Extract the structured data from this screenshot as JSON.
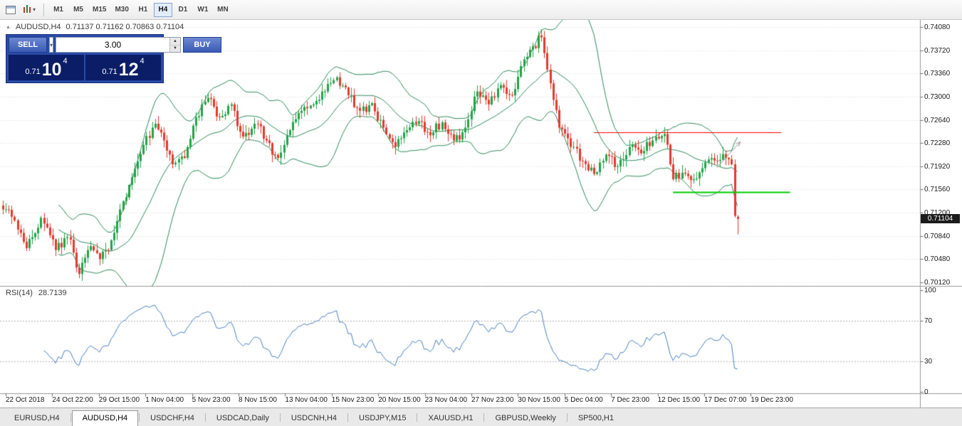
{
  "toolbar": {
    "timeframes": [
      "M1",
      "M5",
      "M15",
      "M30",
      "H1",
      "H4",
      "D1",
      "W1",
      "MN"
    ],
    "active_timeframe": "H4"
  },
  "chart_header": {
    "symbol": "AUDUSD,H4",
    "ohlc": "0.71137 0.71162 0.70863 0.71104"
  },
  "trade_panel": {
    "sell_label": "SELL",
    "buy_label": "BUY",
    "lot_size": "3.00",
    "sell_price": {
      "prefix": "0.71",
      "big": "10",
      "sup": "4"
    },
    "buy_price": {
      "prefix": "0.71",
      "big": "12",
      "sup": "4"
    }
  },
  "price_axis": {
    "labels": [
      "0.74080",
      "0.73720",
      "0.73360",
      "0.73000",
      "0.72640",
      "0.72280",
      "0.71920",
      "0.71560",
      "0.71200",
      "0.70840",
      "0.70480",
      "0.70120"
    ],
    "current": "0.71104"
  },
  "rsi_panel": {
    "label": "RSI(14)",
    "value": "28.7139",
    "axis": [
      {
        "text": "100",
        "v": 100
      },
      {
        "text": "70",
        "v": 70
      },
      {
        "text": "30",
        "v": 30
      },
      {
        "text": "0",
        "v": 0
      }
    ]
  },
  "time_axis": {
    "labels": [
      "22 Oct 2018",
      "24 Oct 22:00",
      "29 Oct 15:00",
      "1 Nov 04:00",
      "5 Nov 23:00",
      "8 Nov 15:00",
      "13 Nov 04:00",
      "15 Nov 23:00",
      "20 Nov 15:00",
      "23 Nov 04:00",
      "27 Nov 23:00",
      "30 Nov 15:00",
      "5 Dec 04:00",
      "7 Dec 23:00",
      "12 Dec 15:00",
      "17 Dec 07:00",
      "19 Dec 23:00"
    ]
  },
  "tabs": {
    "items": [
      "EURUSD,H4",
      "AUDUSD,H4",
      "USDCHF,H4",
      "USDCAD,Daily",
      "USDCNH,H4",
      "USDJPY,M15",
      "XAUUSD,H1",
      "GBPUSD,Weekly",
      "SP500,H1"
    ],
    "active_index": 1
  },
  "chart_data": {
    "type": "candlestick",
    "symbol": "AUDUSD",
    "timeframe": "H4",
    "num_candles": 252,
    "y_axis": {
      "min": 0.7012,
      "max": 0.7408
    },
    "price_path": [
      [
        0,
        0.7125
      ],
      [
        4,
        0.7108
      ],
      [
        8,
        0.7065
      ],
      [
        11,
        0.7088
      ],
      [
        13,
        0.7112
      ],
      [
        16,
        0.7085
      ],
      [
        18,
        0.7062
      ],
      [
        22,
        0.7082
      ],
      [
        24,
        0.7058
      ],
      [
        26,
        0.7025
      ],
      [
        28,
        0.705
      ],
      [
        30,
        0.7068
      ],
      [
        33,
        0.7048
      ],
      [
        36,
        0.7062
      ],
      [
        40,
        0.7125
      ],
      [
        44,
        0.7175
      ],
      [
        48,
        0.7225
      ],
      [
        52,
        0.7258
      ],
      [
        55,
        0.7232
      ],
      [
        58,
        0.7195
      ],
      [
        62,
        0.7205
      ],
      [
        66,
        0.7268
      ],
      [
        70,
        0.7298
      ],
      [
        74,
        0.7268
      ],
      [
        78,
        0.7288
      ],
      [
        82,
        0.7238
      ],
      [
        86,
        0.7258
      ],
      [
        90,
        0.7232
      ],
      [
        94,
        0.7205
      ],
      [
        98,
        0.7248
      ],
      [
        102,
        0.7278
      ],
      [
        106,
        0.7288
      ],
      [
        110,
        0.7308
      ],
      [
        114,
        0.733
      ],
      [
        118,
        0.7302
      ],
      [
        122,
        0.7278
      ],
      [
        126,
        0.729
      ],
      [
        130,
        0.7252
      ],
      [
        134,
        0.7222
      ],
      [
        138,
        0.7248
      ],
      [
        142,
        0.7262
      ],
      [
        146,
        0.724
      ],
      [
        150,
        0.726
      ],
      [
        154,
        0.7232
      ],
      [
        158,
        0.7252
      ],
      [
        162,
        0.7308
      ],
      [
        166,
        0.7288
      ],
      [
        170,
        0.7318
      ],
      [
        174,
        0.7302
      ],
      [
        178,
        0.7358
      ],
      [
        181,
        0.7378
      ],
      [
        184,
        0.7392
      ],
      [
        186,
        0.7342
      ],
      [
        190,
        0.7252
      ],
      [
        194,
        0.7222
      ],
      [
        198,
        0.72
      ],
      [
        202,
        0.718
      ],
      [
        206,
        0.721
      ],
      [
        210,
        0.7192
      ],
      [
        214,
        0.7222
      ],
      [
        218,
        0.7212
      ],
      [
        222,
        0.7232
      ],
      [
        226,
        0.7242
      ],
      [
        229,
        0.7172
      ],
      [
        232,
        0.7182
      ],
      [
        236,
        0.7172
      ],
      [
        240,
        0.7198
      ],
      [
        244,
        0.72
      ],
      [
        247,
        0.7205
      ],
      [
        249,
        0.7195
      ],
      [
        250,
        0.7115
      ],
      [
        251,
        0.71104
      ]
    ],
    "last_candle": {
      "open": 0.71137,
      "high": 0.71162,
      "low": 0.70863,
      "close": 0.71104
    },
    "indicators": [
      {
        "name": "Bollinger Bands",
        "period": 20,
        "deviation": 2,
        "color": "#2e8b57"
      },
      {
        "name": "RSI",
        "period": 14,
        "value": 28.7139,
        "color": "#4a7fc1",
        "levels": [
          70,
          30
        ]
      }
    ],
    "hlines": [
      {
        "price": 0.7245,
        "from_idx": 202,
        "to_idx": 266,
        "color": "#ff0000",
        "width": 1
      },
      {
        "price": 0.7152,
        "from_idx": 229,
        "to_idx": 269,
        "color": "#00cc00",
        "width": 2
      }
    ],
    "trendline": {
      "from": [
        244,
        0.719
      ],
      "to": [
        252,
        0.723
      ],
      "color": "#999999"
    },
    "colors": {
      "bull": "#22a348",
      "bear": "#e23a2e",
      "background": "#ffffff",
      "grid": "#dcdcdc"
    }
  }
}
